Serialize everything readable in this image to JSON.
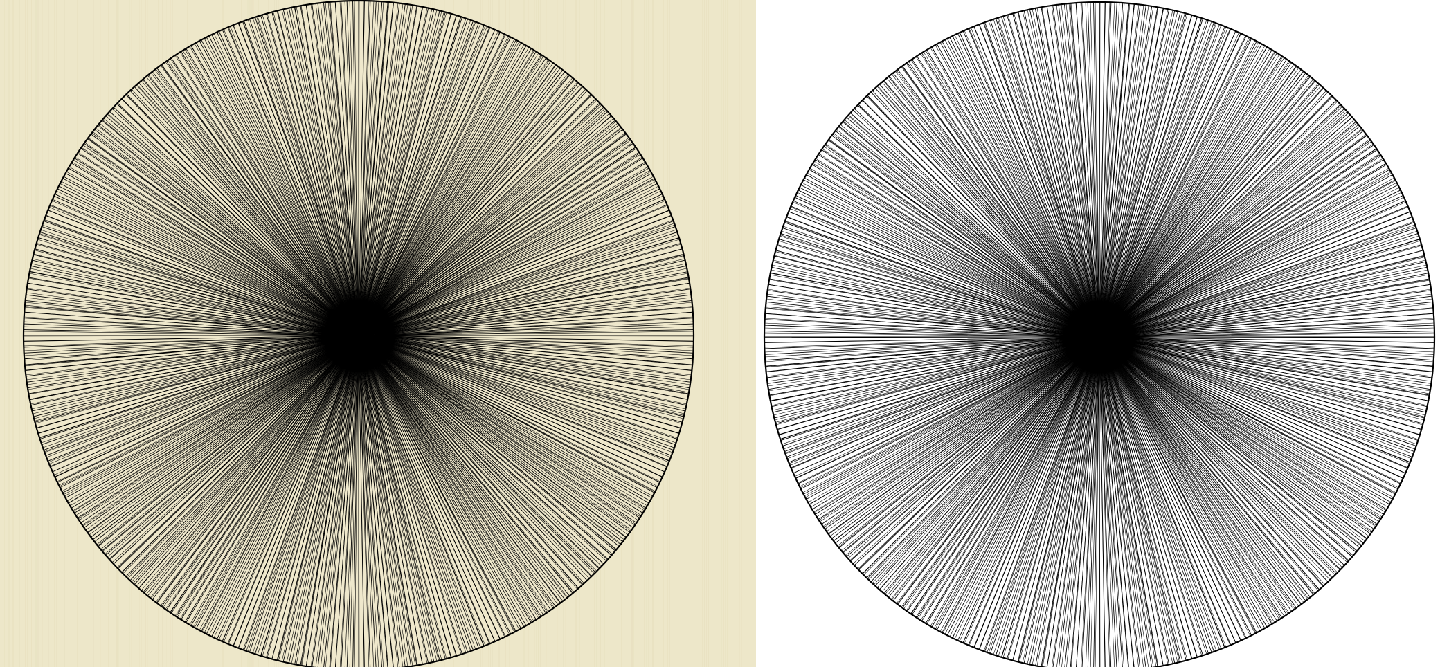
{
  "diagram": {
    "type": "radial-line-pattern",
    "panels": [
      {
        "id": "textured",
        "background_color": "#ede7c9",
        "background_streak_color": "#e4dcb9",
        "disk_fill_color": "#efe8cc",
        "line_color": "#000000"
      },
      {
        "id": "plain",
        "background_color": "#ffffff",
        "disk_fill_color": "#ffffff",
        "line_color": "#000000"
      }
    ],
    "pattern": {
      "ray_angle_increment_deg": 1,
      "rays_hit_chord_grid": true,
      "chord_orientation": "horizontal",
      "dense_center_blob": true
    }
  }
}
